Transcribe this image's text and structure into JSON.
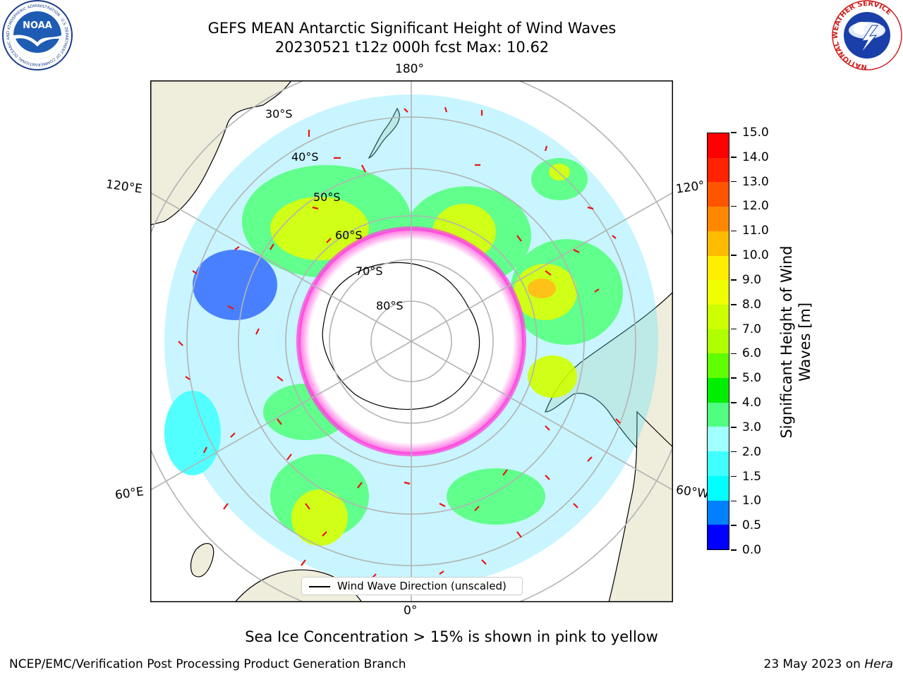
{
  "title": {
    "line1": "GEFS MEAN Antarctic Significant Height of Wind Waves",
    "line2": "20230521 t12z 000h fcst   Max: 10.62"
  },
  "logos": {
    "noaa_text": "NOAA",
    "noaa_ring": "NATIONAL OCEANIC AND ATMOSPHERIC ADMINISTRATION · U.S. DEPARTMENT OF COMMERCE",
    "nws_ring": "NATIONAL WEATHER SERVICE"
  },
  "map": {
    "projection": "south-polar-stereographic",
    "longitude_labels": {
      "top": "180°",
      "bottom": "0°",
      "upper_left": "120°E",
      "lower_left": "60°E",
      "upper_right": "120°",
      "lower_right": "60°W"
    },
    "latitude_labels": [
      "30°S",
      "40°S",
      "50°S",
      "60°S",
      "70°S",
      "80°S"
    ],
    "colors": {
      "land": "#efeddb",
      "sea_ice_edge": "#ff44dd",
      "sea_ice_fill": "#ffffff",
      "arrow": "#ee1111",
      "gridline": "#b3b3b3"
    }
  },
  "legend": {
    "label": "Wind Wave Direction (unscaled)"
  },
  "colorbar": {
    "title_line1": "Significant Height of Wind",
    "title_line2": "Waves [m]",
    "ticks": [
      "0.0",
      "0.5",
      "1.0",
      "1.5",
      "2.0",
      "3.0",
      "4.0",
      "5.0",
      "6.0",
      "7.0",
      "8.0",
      "9.0",
      "10.0",
      "11.0",
      "12.0",
      "13.0",
      "14.0",
      "15.0"
    ],
    "colors": [
      "#0000ff",
      "#0080ff",
      "#00ffff",
      "#40ffff",
      "#a0ffff",
      "#50ff80",
      "#00ee00",
      "#60ff00",
      "#b0ff00",
      "#ccff00",
      "#f0ff00",
      "#ffee00",
      "#ffbb00",
      "#ff8800",
      "#ff5500",
      "#ff2200",
      "#ff0000"
    ]
  },
  "caption": "Sea Ice Concentration > 15% is shown in pink to yellow",
  "footer": {
    "credit": "NCEP/EMC/Verification Post Processing Product Generation Branch",
    "date_prefix": "23 May 2023 on ",
    "date_machine": "Hera"
  }
}
